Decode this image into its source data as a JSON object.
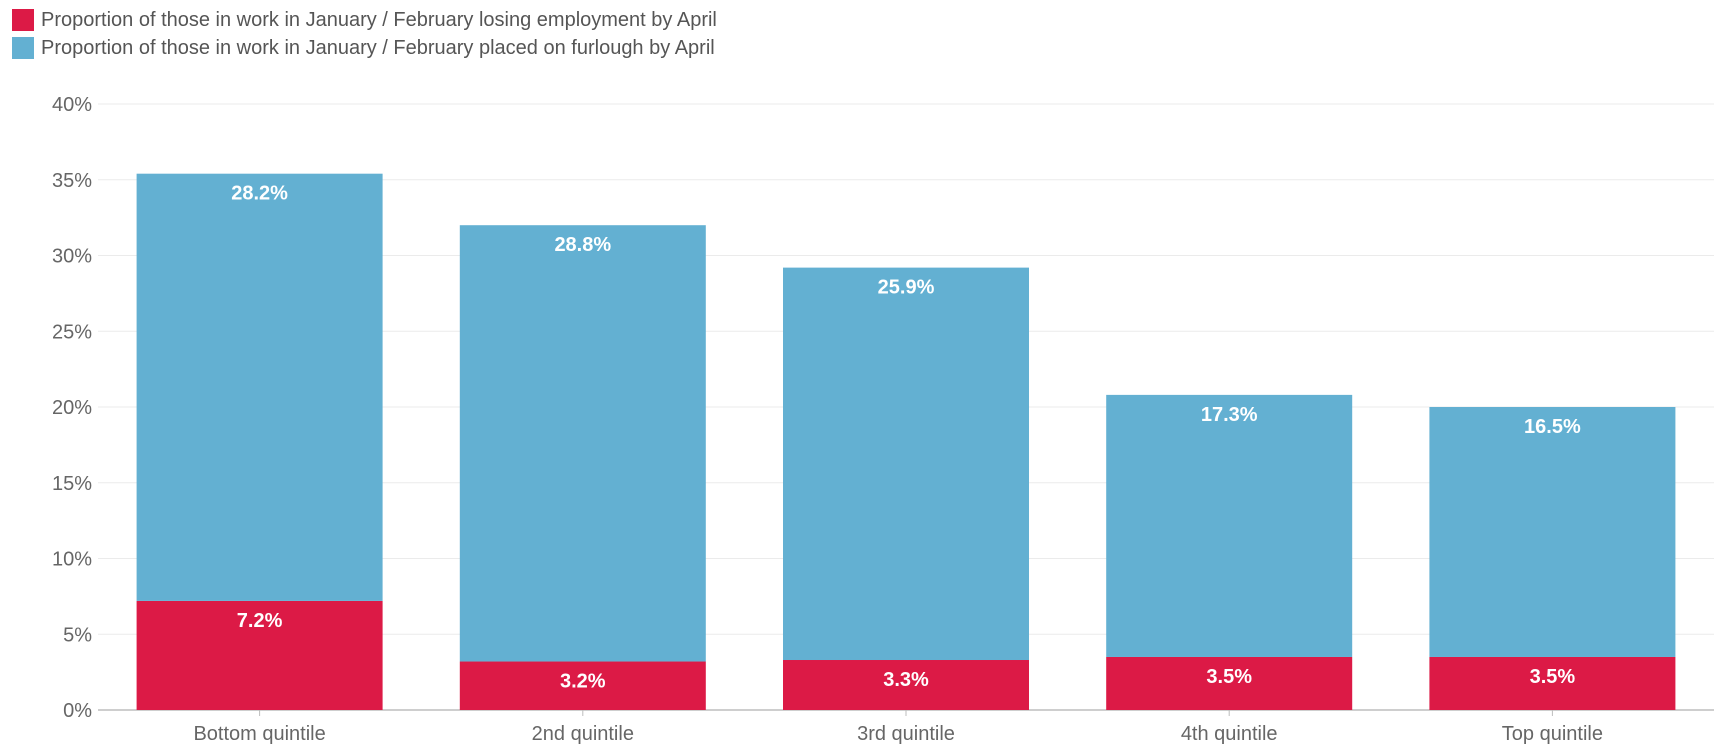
{
  "chart_data": {
    "type": "bar",
    "stacked": true,
    "categories": [
      "Bottom quintile",
      "2nd quintile",
      "3rd quintile",
      "4th quintile",
      "Top quintile"
    ],
    "series": [
      {
        "name": "Proportion of those in work in January / February losing employment by April",
        "color": "#dc1a46",
        "values": [
          7.2,
          3.2,
          3.3,
          3.5,
          3.5
        ],
        "labels": [
          "7.2%",
          "3.2%",
          "3.3%",
          "3.5%",
          "3.5%"
        ]
      },
      {
        "name": "Proportion of those in work in January / February placed on furlough by April",
        "color": "#63b0d2",
        "values": [
          28.2,
          28.8,
          25.9,
          17.3,
          16.5
        ],
        "labels": [
          "28.2%",
          "28.8%",
          "25.9%",
          "17.3%",
          "16.5%"
        ]
      }
    ],
    "ylim": [
      0,
      40
    ],
    "y_ticks": [
      0,
      5,
      10,
      15,
      20,
      25,
      30,
      35,
      40
    ],
    "y_tick_labels": [
      "0%",
      "5%",
      "10%",
      "15%",
      "20%",
      "25%",
      "30%",
      "35%",
      "40%"
    ],
    "xlabel": "",
    "ylabel": "",
    "grid": true,
    "legend_position": "top-left"
  }
}
